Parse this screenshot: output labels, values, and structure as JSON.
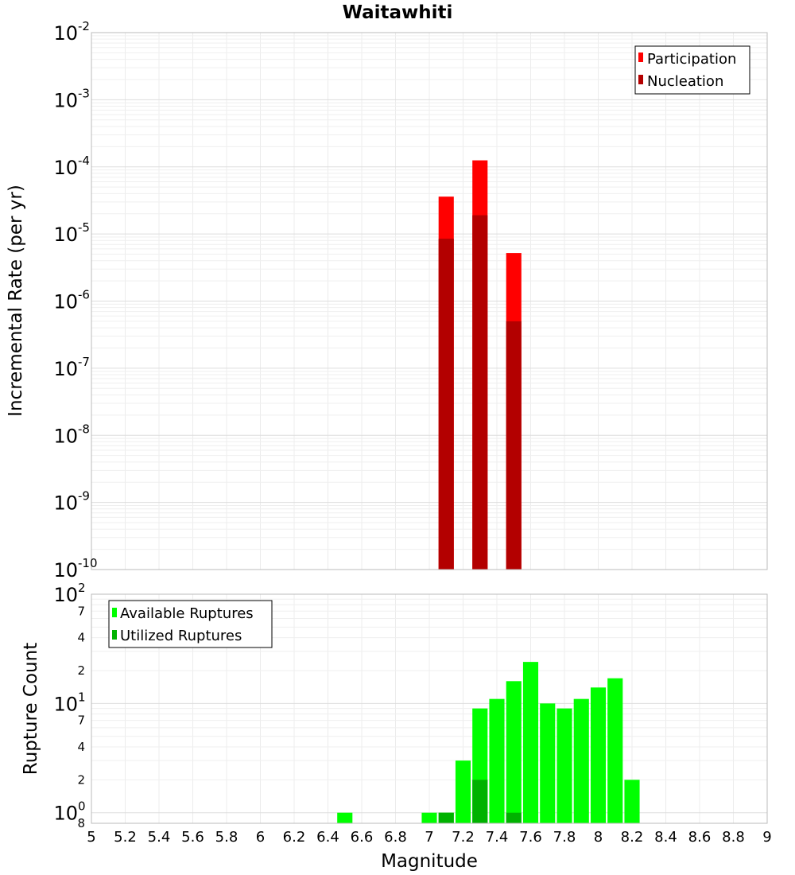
{
  "title": "Waitawhiti",
  "chart_data": [
    {
      "type": "bar",
      "scale": "log",
      "x": [
        7.1,
        7.3,
        7.5
      ],
      "series": [
        {
          "name": "Participation",
          "color": "#ff0000",
          "values": [
            3.6e-05,
            0.000125,
            5.2e-06
          ]
        },
        {
          "name": "Nucleation",
          "color": "#b30000",
          "values": [
            8.5e-06,
            1.9e-05,
            5e-07
          ]
        }
      ],
      "xlim": [
        5,
        9
      ],
      "ylim": [
        1e-10,
        0.01
      ],
      "xlabel": "Magnitude",
      "ylabel": "Incremental Rate (per yr)",
      "yticks": [
        {
          "base": "10",
          "exp": "-2"
        },
        {
          "base": "10",
          "exp": "-3"
        },
        {
          "base": "10",
          "exp": "-4"
        },
        {
          "base": "10",
          "exp": "-5"
        },
        {
          "base": "10",
          "exp": "-6"
        },
        {
          "base": "10",
          "exp": "-7"
        },
        {
          "base": "10",
          "exp": "-8"
        },
        {
          "base": "10",
          "exp": "-9"
        },
        {
          "base": "10",
          "exp": "-10"
        }
      ],
      "legend": "top-right"
    },
    {
      "type": "bar",
      "scale": "log",
      "x": [
        6.5,
        7.0,
        7.1,
        7.2,
        7.3,
        7.4,
        7.5,
        7.6,
        7.7,
        7.8,
        7.9,
        8.0,
        8.1,
        8.2
      ],
      "series": [
        {
          "name": "Available Ruptures",
          "color": "#00ff00",
          "values": [
            1,
            1,
            1,
            3,
            9,
            11,
            16,
            24,
            10,
            9,
            11,
            14,
            17,
            2
          ]
        },
        {
          "name": "Utilized Ruptures",
          "color": "#00b200",
          "values": [
            0,
            0,
            1,
            0,
            2,
            0,
            1,
            0,
            0,
            0,
            0,
            0,
            0,
            0
          ]
        }
      ],
      "xlim": [
        5,
        9
      ],
      "ylim": [
        0.8,
        100
      ],
      "xlabel": "Magnitude",
      "ylabel": "Rupture Count",
      "major_ticks": [
        {
          "base": "10",
          "exp": "2"
        },
        {
          "base": "10",
          "exp": "1"
        },
        {
          "base": "10",
          "exp": "0"
        }
      ],
      "minor_ticks": [
        "7",
        "4",
        "2",
        "7",
        "4",
        "2",
        "8"
      ],
      "xticks": [
        "5",
        "5.2",
        "5.4",
        "5.6",
        "5.8",
        "6",
        "6.2",
        "6.4",
        "6.6",
        "6.8",
        "7",
        "7.2",
        "7.4",
        "7.6",
        "7.8",
        "8",
        "8.2",
        "8.4",
        "8.6",
        "8.8",
        "9"
      ],
      "legend": "top-left"
    }
  ]
}
